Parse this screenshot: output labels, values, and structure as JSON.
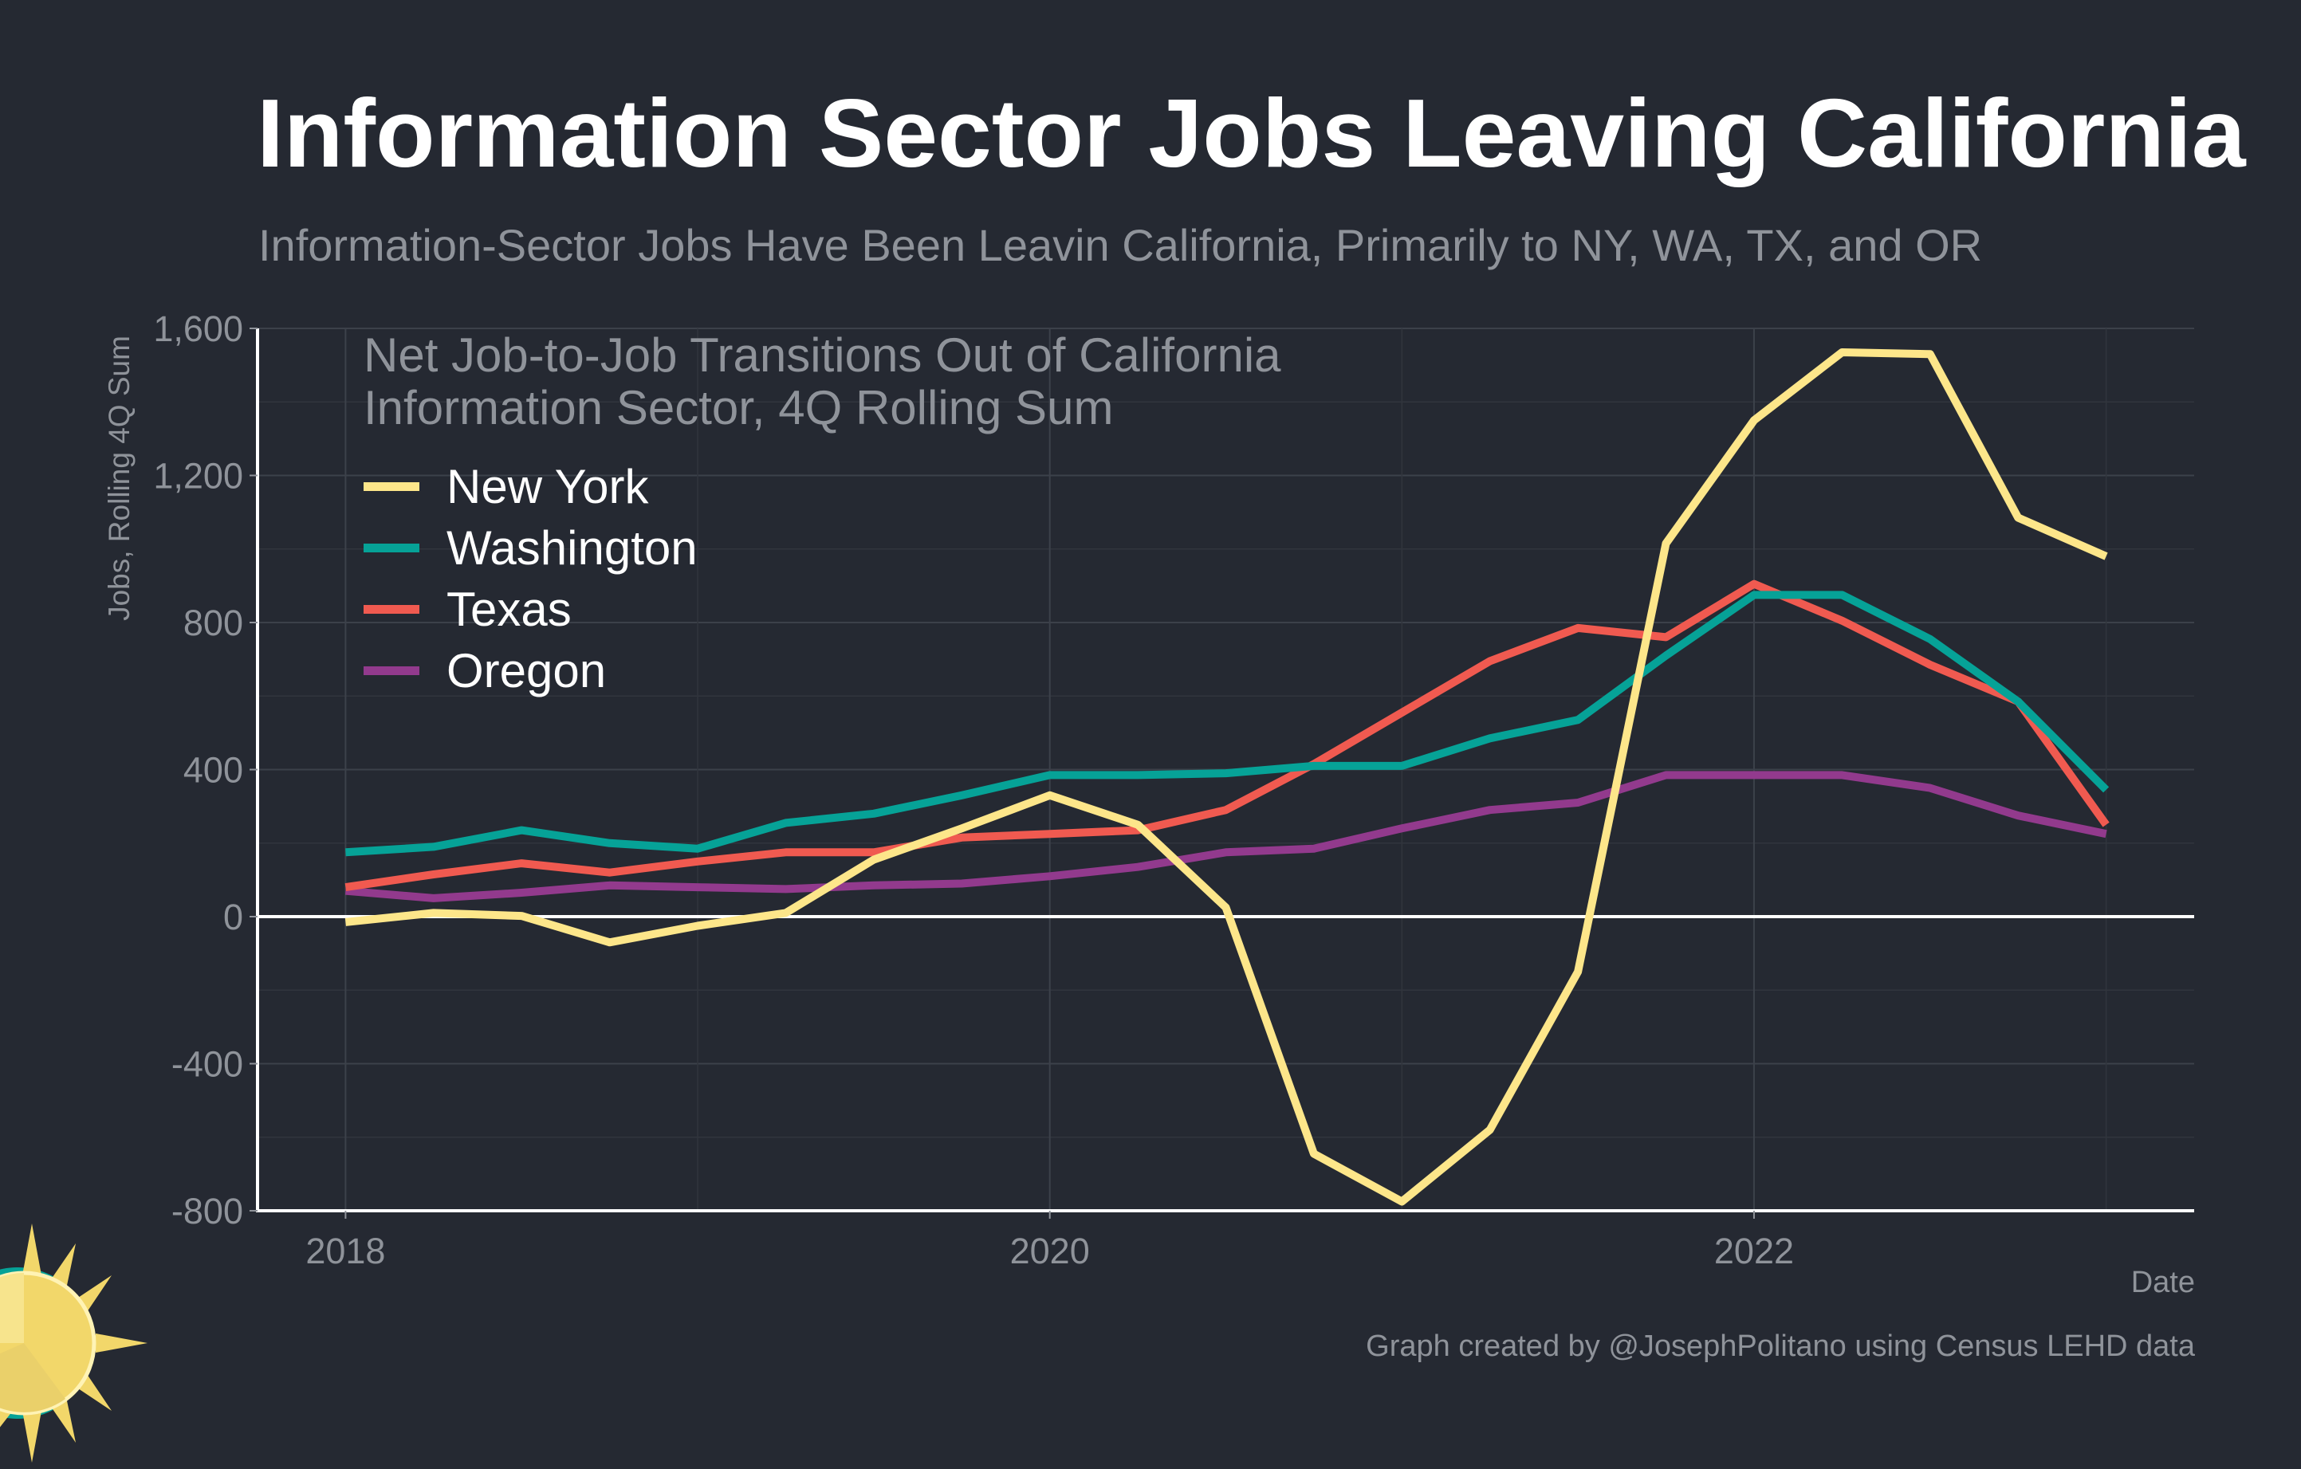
{
  "title": "Information Sector Jobs Leaving California",
  "subtitle": "Information-Sector Jobs Have Been Leavin California, Primarily to NY, WA, TX, and OR",
  "note_line1": "Net Job-to-Job Transitions Out of California",
  "note_line2": "Information Sector, 4Q Rolling Sum",
  "credit": "Graph created by @JosephPolitano using Census LEHD data",
  "logo": "sun-logo",
  "chart_data": {
    "type": "line",
    "xlabel": "Date",
    "ylabel": "Jobs, Rolling 4Q Sum",
    "ylim": [
      -800,
      1600
    ],
    "yticks": [
      -800,
      -400,
      0,
      400,
      800,
      1200,
      1600
    ],
    "ytick_labels": [
      "-800",
      "-400",
      "0",
      "400",
      "800",
      "1,200",
      "1,600"
    ],
    "xlim": [
      "2017-10",
      "2023-04"
    ],
    "xticks": [
      "2018-01",
      "2020-01",
      "2022-01"
    ],
    "xtick_labels": [
      "2018",
      "2020",
      "2022"
    ],
    "grid": true,
    "legend_position": "top-left",
    "x": [
      "2018-01",
      "2018-04",
      "2018-07",
      "2018-10",
      "2019-01",
      "2019-04",
      "2019-07",
      "2019-10",
      "2020-01",
      "2020-04",
      "2020-07",
      "2020-10",
      "2021-01",
      "2021-04",
      "2021-07",
      "2021-10",
      "2022-01",
      "2022-04",
      "2022-07",
      "2022-10",
      "2023-01"
    ],
    "series": [
      {
        "name": "New York",
        "color": "#fde68a",
        "values": [
          -15,
          10,
          2,
          -70,
          -25,
          10,
          155,
          240,
          330,
          250,
          25,
          -645,
          -775,
          -580,
          -150,
          1015,
          1350,
          1535,
          1530,
          1085,
          980
        ]
      },
      {
        "name": "Washington",
        "color": "#06a297",
        "values": [
          175,
          190,
          235,
          200,
          185,
          255,
          280,
          330,
          385,
          385,
          390,
          410,
          410,
          485,
          535,
          710,
          875,
          875,
          755,
          585,
          345
        ]
      },
      {
        "name": "Texas",
        "color": "#f05a50",
        "values": [
          80,
          115,
          145,
          120,
          150,
          175,
          175,
          215,
          225,
          235,
          290,
          415,
          555,
          695,
          785,
          760,
          905,
          805,
          685,
          585,
          250
        ]
      },
      {
        "name": "Oregon",
        "color": "#923a8d",
        "values": [
          70,
          50,
          65,
          85,
          80,
          75,
          85,
          90,
          110,
          135,
          175,
          185,
          240,
          290,
          310,
          385,
          385,
          385,
          350,
          275,
          225
        ]
      }
    ]
  }
}
